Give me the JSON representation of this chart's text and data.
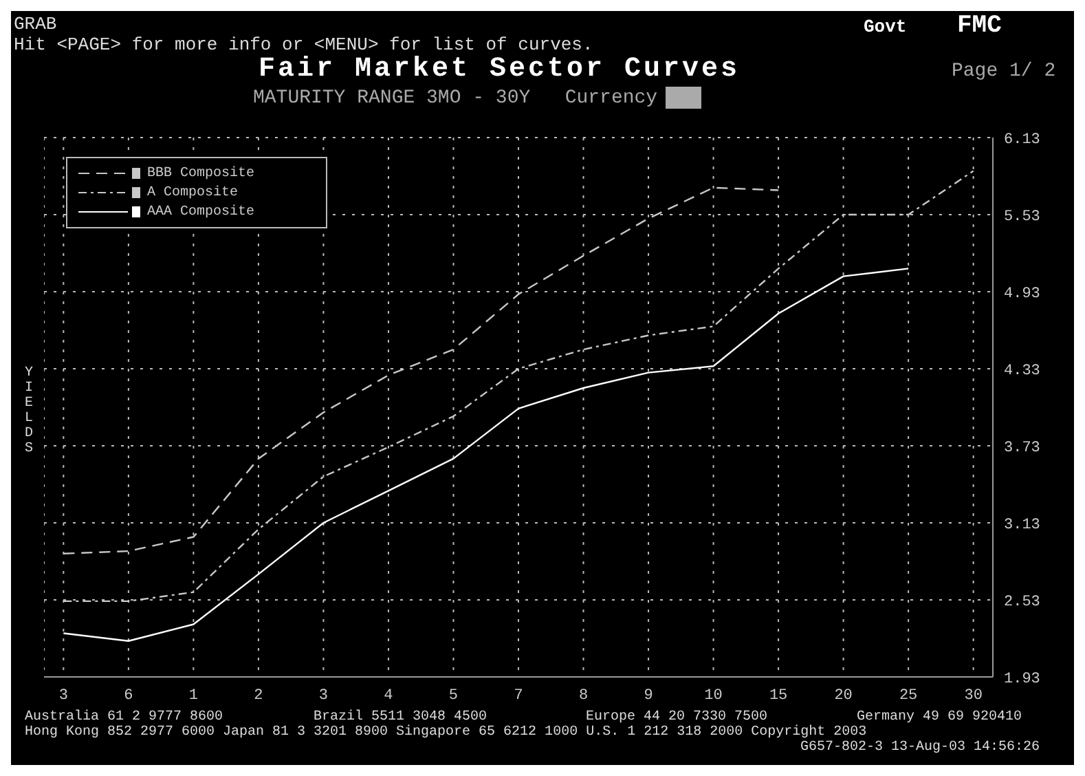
{
  "chart_data": {
    "type": "line",
    "title": "Fair Market Sector Curves",
    "subtitle": "MATURITY RANGE 3MO - 30Y   Currency",
    "ylabel": "YIELDS",
    "annotations": [
      "GRAB",
      "Hit <PAGE> for more info or <MENU> for list of curves.",
      "Govt",
      "FMC",
      "Page 1/ 2",
      "Australia 61 2 9777 8600",
      "Brazil 5511 3048 4500",
      "Europe 44 20 7330 7500",
      "Germany 49 69 920410",
      "Hong Kong 852 2977 6000 Japan 81 3 3201 8900 Singapore 65 6212 1000 U.S. 1 212 318 2000 Copyright 2003",
      "G657-802-3 13-Aug-03 14:56:26"
    ],
    "categories": [
      "3",
      "6",
      "1",
      "2",
      "3",
      "4",
      "5",
      "7",
      "8",
      "9",
      "10",
      "15",
      "20",
      "25",
      "30"
    ],
    "series": [
      {
        "name": "BBB Composite",
        "color": "#c8c8c8",
        "line_style": "dashed",
        "values": [
          2.89,
          2.91,
          3.02,
          3.63,
          3.99,
          4.28,
          4.48,
          4.91,
          5.21,
          5.5,
          5.74,
          5.72,
          null,
          null,
          null
        ]
      },
      {
        "name": "A Composite",
        "color": "#c8c8c8",
        "line_style": "dotted",
        "values": [
          2.52,
          2.52,
          2.59,
          3.08,
          3.49,
          3.72,
          3.96,
          4.33,
          4.48,
          4.59,
          4.66,
          5.11,
          5.53,
          5.53,
          5.87
        ]
      },
      {
        "name": "AAA Composite",
        "color": "#ffffff",
        "line_style": "solid",
        "values": [
          2.27,
          2.21,
          2.34,
          2.73,
          3.13,
          3.38,
          3.63,
          4.02,
          4.18,
          4.3,
          4.35,
          4.76,
          5.05,
          5.11,
          null
        ]
      }
    ],
    "ylim": [
      1.93,
      6.13
    ],
    "yticks": [
      1.93,
      2.53,
      3.13,
      3.73,
      4.33,
      4.93,
      5.53,
      6.13
    ],
    "grid": true,
    "legend": "top left",
    "marker": "none"
  }
}
